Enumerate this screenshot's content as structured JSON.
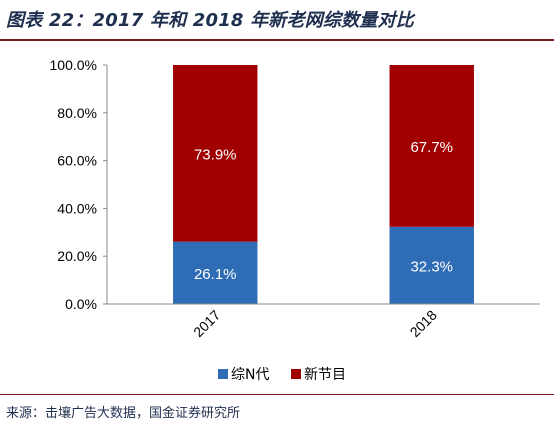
{
  "figure": {
    "title": "图表 22：2017 年和 2018 年新老网综数量对比",
    "source": "来源：击壤广告大数据，国金证券研究所"
  },
  "chart_data": {
    "type": "bar",
    "stacked": true,
    "categories": [
      "2017",
      "2018"
    ],
    "series": [
      {
        "name": "综N代",
        "color": "#2e6db5",
        "values": [
          26.1,
          32.3
        ],
        "labels": [
          "26.1%",
          "32.3%"
        ]
      },
      {
        "name": "新节目",
        "color": "#a00000",
        "values": [
          73.9,
          67.7
        ],
        "labels": [
          "73.9%",
          "67.7%"
        ]
      }
    ],
    "ylim": [
      0,
      100
    ],
    "yticks": [
      0,
      20,
      40,
      60,
      80,
      100
    ],
    "ytick_labels": [
      "0.0%",
      "20.0%",
      "40.0%",
      "60.0%",
      "80.0%",
      "100.0%"
    ],
    "grid": false,
    "legend_position": "bottom"
  }
}
